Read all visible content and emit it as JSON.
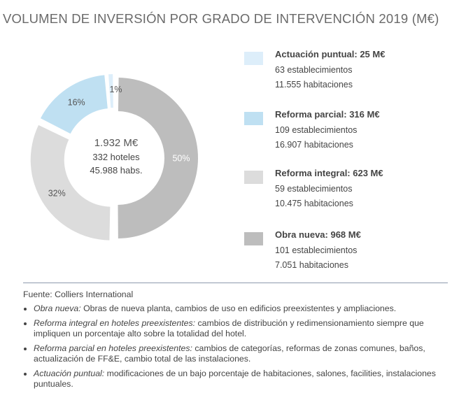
{
  "title": "VOLUMEN DE INVERSIÓN POR GRADO DE INTERVENCIÓN 2019 (M€)",
  "chart_data": {
    "type": "pie",
    "variant": "donut",
    "unit": "M€",
    "slices": [
      {
        "label": "Obra nueva",
        "value": 968,
        "percent_label": "50%",
        "color": "#bdbdbd",
        "label_color": "#ffffff"
      },
      {
        "label": "Reforma integral",
        "value": 623,
        "percent_label": "32%",
        "color": "#dcdcdc",
        "label_color": "#555555"
      },
      {
        "label": "Reforma parcial",
        "value": 316,
        "percent_label": "16%",
        "color": "#bfe0f2",
        "label_color": "#555555"
      },
      {
        "label": "Actuación puntual",
        "value": 25,
        "percent_label": "1%",
        "color": "#ddeefa",
        "label_color": "#555555"
      }
    ],
    "center": {
      "total": "1.932 M€",
      "hotels": "332 hoteles",
      "rooms": "45.988 habs."
    },
    "legend_placement": "right"
  },
  "legend": [
    {
      "title": "Actuación puntual: 25 M€",
      "line1": "63 establecimientos",
      "line2": "11.555 habitaciones",
      "color": "#ddeefa"
    },
    {
      "title": "Reforma parcial: 316 M€",
      "line1": "109 establecimientos",
      "line2": "16.907 habitaciones",
      "color": "#bfe0f2"
    },
    {
      "title": "Reforma integral: 623 M€",
      "line1": "59 establecimientos",
      "line2": "10.475 habitaciones",
      "color": "#dcdcdc"
    },
    {
      "title": "Obra nueva: 968 M€",
      "line1": "101 establecimientos",
      "line2": "7.051 habitaciones",
      "color": "#bdbdbd"
    }
  ],
  "source": "Fuente: Colliers International",
  "notes": [
    {
      "term": "Obra nueva:",
      "text": " Obras de nueva planta, cambios de uso en edificios preexistentes y ampliaciones."
    },
    {
      "term": "Reforma integral en hoteles preexistentes:",
      "text": " cambios de distribución y redimensionamiento siempre que impliquen un porcentaje alto sobre la totalidad del hotel."
    },
    {
      "term": "Reforma parcial en hoteles preexistentes:",
      "text": " cambios de categorías, reformas de zonas comunes, baños, actualización de FF&E, cambio total de las instalaciones."
    },
    {
      "term": "Actuación puntual:",
      "text": " modificaciones de un bajo porcentaje de habitaciones, salones, facilities, instalaciones puntuales."
    }
  ]
}
